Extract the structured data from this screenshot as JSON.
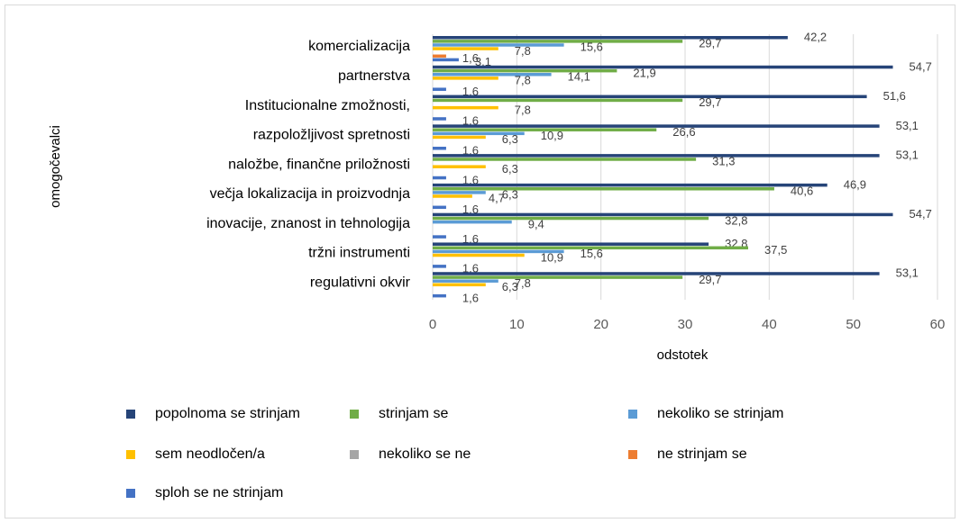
{
  "chart_data": {
    "type": "hbar",
    "x_label": "odstotek",
    "y_label": "omogočevalci",
    "categories": [
      "komercializacija",
      "partnerstva",
      "Institucionalne zmožnosti,",
      "razpoložljivost spretnosti",
      "naložbe, finančne priložnosti",
      "večja lokalizacija in proizvodnja",
      "inovacije, znanost in tehnologija",
      "tržni instrumenti",
      "regulativni okvir"
    ],
    "series": [
      {
        "name": "popolnoma se strinjam",
        "color": "#264478",
        "values": [
          42.2,
          54.7,
          51.6,
          53.1,
          53.1,
          46.9,
          54.7,
          32.8,
          53.1
        ],
        "value_labels": [
          "42,2",
          "54,7",
          "51,6",
          "53,1",
          "53,1",
          "46,9",
          "54,7",
          "32,8",
          "53,1"
        ]
      },
      {
        "name": "strinjam se",
        "color": "#70ad47",
        "values": [
          29.7,
          21.9,
          29.7,
          26.6,
          31.3,
          40.6,
          32.8,
          37.5,
          29.7
        ],
        "value_labels": [
          "29,7",
          "21,9",
          "29,7",
          "26,6",
          "31,3",
          "40,6",
          "32,8",
          "37,5",
          "29,7"
        ]
      },
      {
        "name": "nekoliko se strinjam",
        "color": "#5b9bd5",
        "values": [
          15.6,
          14.1,
          null,
          10.9,
          null,
          6.3,
          9.4,
          15.6,
          7.8
        ],
        "value_labels": [
          "15,6",
          "14,1",
          null,
          "10,9",
          null,
          "6,3",
          "9,4",
          "15,6",
          "7,8"
        ]
      },
      {
        "name": "sem neodločen/a",
        "color": "#ffc000",
        "values": [
          7.8,
          7.8,
          7.8,
          6.3,
          6.3,
          4.7,
          null,
          10.9,
          6.3
        ],
        "value_labels": [
          "7,8",
          "7,8",
          "7,8",
          "6,3",
          "6,3",
          "4,7",
          null,
          "10,9",
          "6,3"
        ]
      },
      {
        "name": "nekoliko se ne",
        "color": "#a5a5a5",
        "values": [
          null,
          null,
          null,
          null,
          null,
          null,
          null,
          null,
          null
        ]
      },
      {
        "name": "ne strinjam se",
        "color": "#ed7d31",
        "values": [
          1.6,
          null,
          null,
          null,
          null,
          null,
          null,
          null,
          null
        ],
        "value_labels": [
          "1,6",
          null,
          null,
          null,
          null,
          null,
          null,
          null,
          null
        ]
      },
      {
        "name": "sploh se ne strinjam",
        "color": "#4472c4",
        "values": [
          3.1,
          1.6,
          1.6,
          1.6,
          1.6,
          1.6,
          1.6,
          1.6,
          1.6
        ],
        "value_labels": [
          "3,1",
          "1,6",
          "1,6",
          "1,6",
          "1,6",
          "1,6",
          "1,6",
          "1,6",
          "1,6"
        ]
      }
    ],
    "xlim": [
      0,
      60
    ],
    "xticks": [
      0,
      10,
      20,
      30,
      40,
      50,
      60
    ],
    "grid": true
  }
}
